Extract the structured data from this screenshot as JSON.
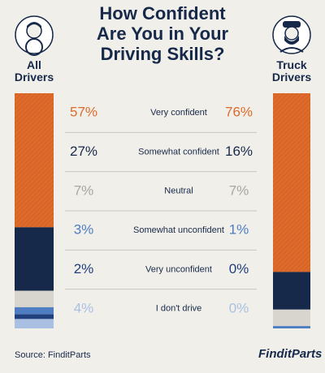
{
  "chart_data": {
    "type": "stacked-bar",
    "title": "How Confident Are You in Your Driving Skills?",
    "categories": [
      "Very confident",
      "Somewhat confident",
      "Neutral",
      "Somewhat unconfident",
      "Very unconfident",
      "I don't drive"
    ],
    "colors": [
      "#de6a2b",
      "#17294a",
      "#d8d5ce",
      "#4f7dc2",
      "#1f3f7d",
      "#a9c0e2"
    ],
    "label_colors": [
      "#de6a2b",
      "#17294a",
      "#a8a6a0",
      "#4f7dc2",
      "#1f3f7d",
      "#a9c0e2"
    ],
    "series": [
      {
        "name": "All Drivers",
        "values": [
          57,
          27,
          7,
          3,
          2,
          4
        ],
        "value_labels": [
          "57%",
          "27%",
          "7%",
          "3%",
          "2%",
          "4%"
        ]
      },
      {
        "name": "Truck Drivers",
        "values": [
          76,
          16,
          7,
          1,
          0,
          0
        ],
        "value_labels": [
          "76%",
          "16%",
          "7%",
          "1%",
          "0%",
          "0%"
        ]
      }
    ],
    "source": "Source: FinditParts",
    "logo": "FinditParts"
  }
}
